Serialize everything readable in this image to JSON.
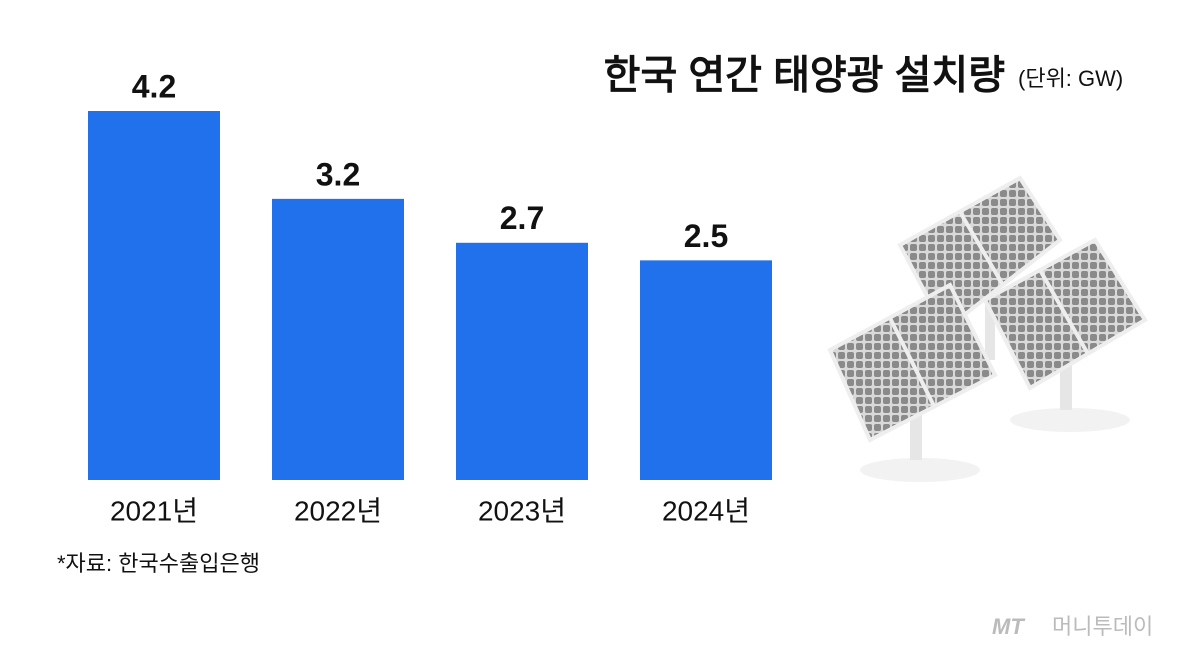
{
  "chart_data": {
    "type": "bar",
    "title": "한국 연간 태양광 설치량",
    "unit": "(단위: GW)",
    "categories": [
      "2021년",
      "2022년",
      "2023년",
      "2024년"
    ],
    "values": [
      4.2,
      3.2,
      2.7,
      2.5
    ],
    "color": "#2170ec",
    "source": "*자료: 한국수출입은행"
  },
  "watermark": {
    "logo": "MT",
    "text": "머니투데이"
  }
}
